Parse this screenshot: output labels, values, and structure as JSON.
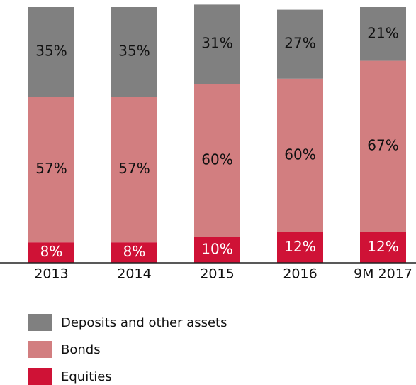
{
  "chart_data": {
    "type": "stacked_bar",
    "categories": [
      "2013",
      "2014",
      "2015",
      "2016",
      "9M 2017"
    ],
    "ylim": [
      0,
      100
    ],
    "series": [
      {
        "name": "Equities",
        "color": "#cf1236",
        "values": [
          8,
          8,
          10,
          12,
          12
        ],
        "value_labels": [
          "8%",
          "8%",
          "10%",
          "12%",
          "12%"
        ]
      },
      {
        "name": "Bonds",
        "color": "#d27e80",
        "values": [
          57,
          57,
          60,
          60,
          67
        ],
        "value_labels": [
          "57%",
          "57%",
          "60%",
          "60%",
          "67%"
        ]
      },
      {
        "name": "Deposits and other assets",
        "color": "#808080",
        "values": [
          35,
          35,
          31,
          27,
          21
        ],
        "value_labels": [
          "35%",
          "35%",
          "31%",
          "27%",
          "21%"
        ]
      }
    ]
  }
}
